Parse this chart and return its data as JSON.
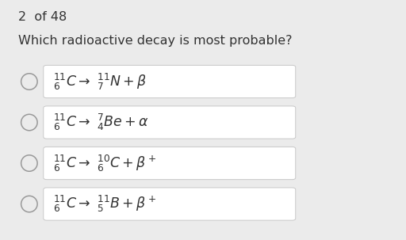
{
  "background_color": "#ebebeb",
  "header": "2  of 48",
  "question": "Which radioactive decay is most probable?",
  "options_raw": [
    "$^{11}_{6}C \\rightarrow\\ ^{11}_{7}N + \\beta$",
    "$^{11}_{6}C \\rightarrow\\ ^{7}_{4}Be + \\alpha$",
    "$^{11}_{6}C \\rightarrow\\ ^{10}_{6}C + \\beta^+$",
    "$^{11}_{6}C \\rightarrow\\ ^{11}_{5}B + \\beta^+$"
  ],
  "option_box_color": "#ffffff",
  "option_box_edge_color": "#c8c8c8",
  "text_color": "#333333",
  "circle_edge_color": "#999999",
  "header_fontsize": 11.5,
  "question_fontsize": 11.5,
  "option_fontsize": 12.5,
  "fig_width": 5.12,
  "fig_height": 3.03,
  "dpi": 100
}
